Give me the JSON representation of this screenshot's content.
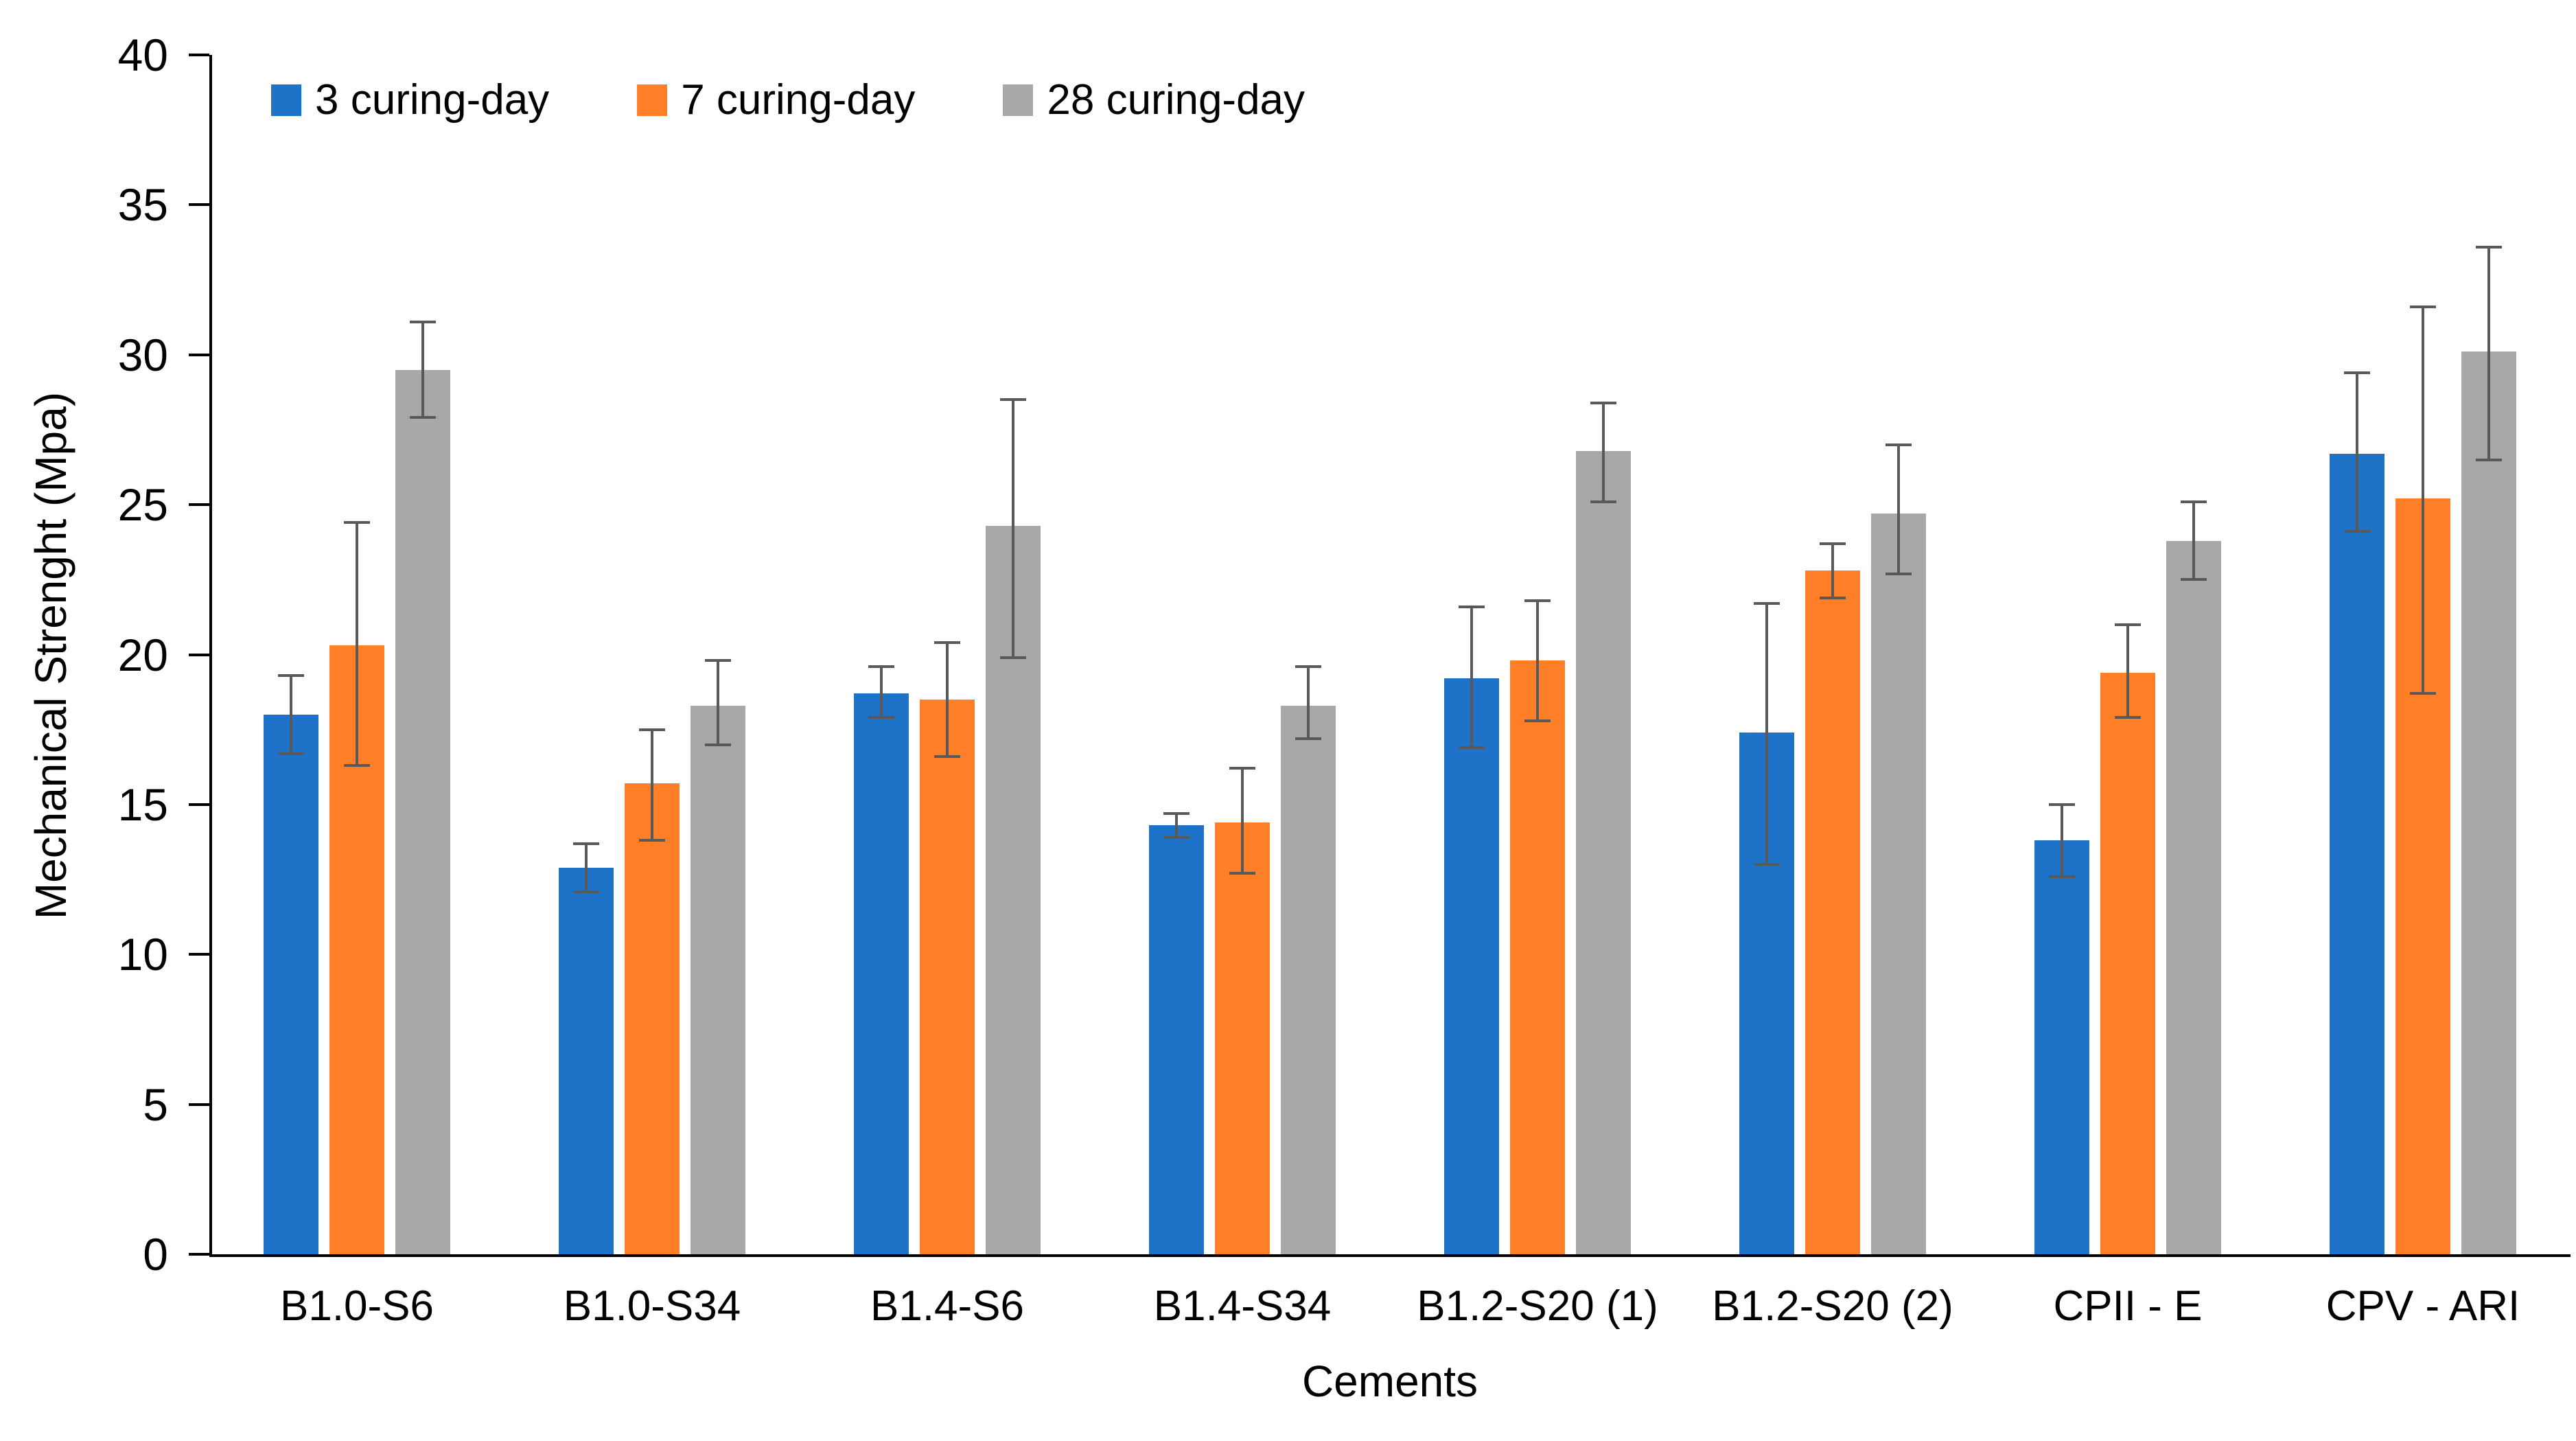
{
  "chart_data": {
    "type": "bar",
    "title": "",
    "xlabel": "Cements",
    "ylabel": "Mechanical Strenght (Mpa)",
    "ylim": [
      0,
      40
    ],
    "yticks": [
      0,
      5,
      10,
      15,
      20,
      25,
      30,
      35,
      40
    ],
    "grid": false,
    "legend_position": "top-left-inside",
    "error_bar_color": "#595959",
    "axis_color": "#000000",
    "categories": [
      "B1.0-S6",
      "B1.0-S34",
      "B1.4-S6",
      "B1.4-S34",
      "B1.2-S20 (1)",
      "B1.2-S20 (2)",
      "CPII - E",
      "CPV - ARI"
    ],
    "series": [
      {
        "name": "3 curing-day",
        "color": "#1E73C8",
        "values": [
          18.0,
          12.9,
          18.7,
          14.3,
          19.2,
          17.4,
          13.8,
          26.7
        ],
        "err_low": [
          16.7,
          12.1,
          17.9,
          13.9,
          16.9,
          13.0,
          12.6,
          24.1
        ],
        "err_high": [
          19.3,
          13.7,
          19.6,
          14.7,
          21.6,
          21.7,
          15.0,
          29.4
        ]
      },
      {
        "name": "7 curing-day",
        "color": "#FF7F28",
        "values": [
          20.3,
          15.7,
          18.5,
          14.4,
          19.8,
          22.8,
          19.4,
          25.2
        ],
        "err_low": [
          16.3,
          13.8,
          16.6,
          12.7,
          17.8,
          21.9,
          17.9,
          18.7
        ],
        "err_high": [
          24.4,
          17.5,
          20.4,
          16.2,
          21.8,
          23.7,
          21.0,
          31.6
        ]
      },
      {
        "name": "28 curing-day",
        "color": "#A8A8A8",
        "values": [
          29.5,
          18.3,
          24.3,
          18.3,
          26.8,
          24.7,
          23.8,
          30.1
        ],
        "err_low": [
          27.9,
          17.0,
          19.9,
          17.2,
          25.1,
          22.7,
          22.5,
          26.5
        ],
        "err_high": [
          31.1,
          19.8,
          28.5,
          19.6,
          28.4,
          27.0,
          25.1,
          33.6
        ]
      }
    ]
  }
}
